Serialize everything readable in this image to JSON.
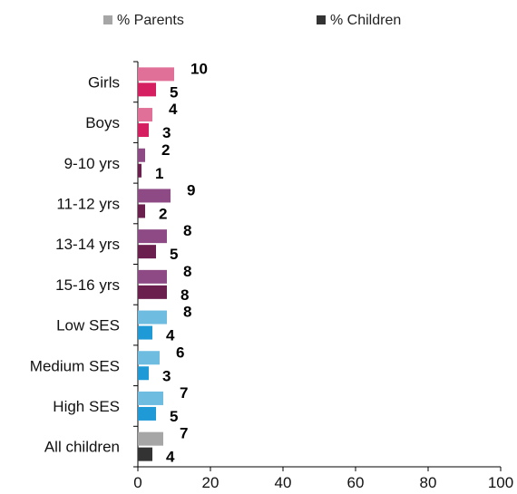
{
  "chart_data": {
    "type": "bar",
    "orientation": "horizontal",
    "legend": {
      "placement": "top",
      "entries": [
        {
          "name": "% Parents",
          "color": "#a6a6a6"
        },
        {
          "name": "% Children",
          "color": "#333333"
        }
      ]
    },
    "categories": [
      "Girls",
      "Boys",
      "9-10 yrs",
      "11-12 yrs",
      "13-14 yrs",
      "15-16 yrs",
      "Low SES",
      "Medium SES",
      "High SES",
      "All children"
    ],
    "series": [
      {
        "name": "% Parents",
        "values": [
          10,
          4,
          2,
          9,
          8,
          8,
          8,
          6,
          7,
          7
        ]
      },
      {
        "name": "% Children",
        "values": [
          5,
          3,
          1,
          2,
          5,
          8,
          4,
          3,
          5,
          4
        ]
      }
    ],
    "colors": {
      "parents": [
        "#e07098",
        "#e07098",
        "#8e4a85",
        "#8e4a85",
        "#8e4a85",
        "#8e4a85",
        "#6ebce0",
        "#6ebce0",
        "#6ebce0",
        "#a6a6a6"
      ],
      "children": [
        "#d61f60",
        "#d61f60",
        "#6a1f4f",
        "#6a1f4f",
        "#6a1f4f",
        "#6a1f4f",
        "#1f9ad6",
        "#1f9ad6",
        "#1f9ad6",
        "#333333"
      ]
    },
    "xlim": [
      0,
      100
    ],
    "xticks": [
      "0",
      "20",
      "40",
      "60",
      "80",
      "100"
    ],
    "grid": false,
    "title": "",
    "xlabel": "",
    "ylabel": ""
  }
}
